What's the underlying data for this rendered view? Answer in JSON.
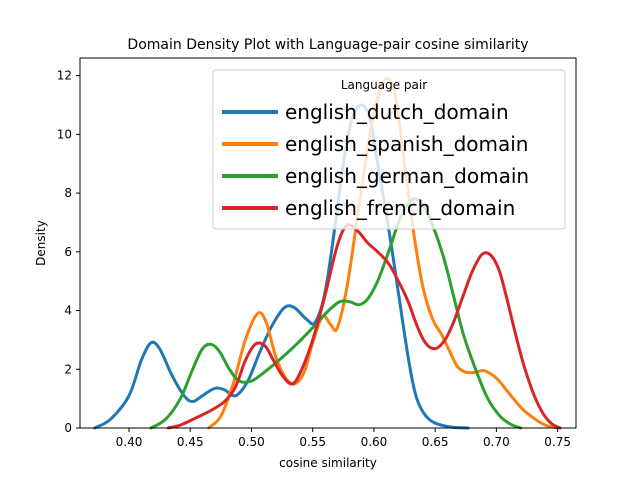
{
  "chart_data": {
    "type": "line",
    "title": "Domain Density Plot with Language-pair cosine similarity",
    "xlabel": "cosine similarity",
    "ylabel": "Density",
    "xlim": [
      0.36,
      0.765
    ],
    "ylim": [
      0,
      12.6
    ],
    "xticks": [
      0.4,
      0.45,
      0.5,
      0.55,
      0.6,
      0.65,
      0.7,
      0.75
    ],
    "xtick_labels": [
      "0.40",
      "0.45",
      "0.50",
      "0.55",
      "0.60",
      "0.65",
      "0.70",
      "0.75"
    ],
    "yticks": [
      0,
      2,
      4,
      6,
      8,
      10,
      12
    ],
    "ytick_labels": [
      "0",
      "2",
      "4",
      "6",
      "8",
      "10",
      "12"
    ],
    "grid": false,
    "legend": {
      "title": "Language pair",
      "placement": "top-right"
    },
    "series": [
      {
        "name": "english_dutch_domain",
        "color": "#1f77b4",
        "points": [
          [
            0.372,
            0
          ],
          [
            0.385,
            0.3
          ],
          [
            0.4,
            1.1
          ],
          [
            0.41,
            2.3
          ],
          [
            0.418,
            2.9
          ],
          [
            0.425,
            2.7
          ],
          [
            0.435,
            1.8
          ],
          [
            0.445,
            1.1
          ],
          [
            0.452,
            0.9
          ],
          [
            0.46,
            1.1
          ],
          [
            0.47,
            1.35
          ],
          [
            0.478,
            1.3
          ],
          [
            0.487,
            1.1
          ],
          [
            0.497,
            1.6
          ],
          [
            0.507,
            2.6
          ],
          [
            0.517,
            3.5
          ],
          [
            0.527,
            4.1
          ],
          [
            0.535,
            4.1
          ],
          [
            0.545,
            3.7
          ],
          [
            0.552,
            3.6
          ],
          [
            0.56,
            4.6
          ],
          [
            0.568,
            6.8
          ],
          [
            0.575,
            9.0
          ],
          [
            0.582,
            10.5
          ],
          [
            0.59,
            11.0
          ],
          [
            0.597,
            10.5
          ],
          [
            0.603,
            9.0
          ],
          [
            0.612,
            6.8
          ],
          [
            0.62,
            4.6
          ],
          [
            0.628,
            2.4
          ],
          [
            0.635,
            1.0
          ],
          [
            0.645,
            0.3
          ],
          [
            0.66,
            0.05
          ],
          [
            0.677,
            0
          ]
        ]
      },
      {
        "name": "english_spanish_domain",
        "color": "#ff7f0e",
        "points": [
          [
            0.465,
            0
          ],
          [
            0.475,
            0.4
          ],
          [
            0.485,
            1.5
          ],
          [
            0.495,
            3.0
          ],
          [
            0.505,
            3.9
          ],
          [
            0.512,
            3.6
          ],
          [
            0.52,
            2.4
          ],
          [
            0.528,
            1.7
          ],
          [
            0.535,
            1.5
          ],
          [
            0.543,
            1.9
          ],
          [
            0.55,
            2.9
          ],
          [
            0.558,
            3.8
          ],
          [
            0.565,
            3.5
          ],
          [
            0.57,
            3.4
          ],
          [
            0.578,
            4.8
          ],
          [
            0.588,
            7.6
          ],
          [
            0.598,
            10.3
          ],
          [
            0.606,
            11.6
          ],
          [
            0.612,
            11.9
          ],
          [
            0.618,
            11.2
          ],
          [
            0.625,
            9.0
          ],
          [
            0.633,
            6.5
          ],
          [
            0.64,
            4.8
          ],
          [
            0.648,
            3.7
          ],
          [
            0.655,
            3.2
          ],
          [
            0.662,
            2.6
          ],
          [
            0.668,
            2.1
          ],
          [
            0.675,
            1.9
          ],
          [
            0.683,
            1.9
          ],
          [
            0.69,
            1.95
          ],
          [
            0.7,
            1.7
          ],
          [
            0.71,
            1.2
          ],
          [
            0.72,
            0.7
          ],
          [
            0.73,
            0.35
          ],
          [
            0.74,
            0.1
          ],
          [
            0.75,
            0
          ]
        ]
      },
      {
        "name": "english_german_domain",
        "color": "#2ca02c",
        "points": [
          [
            0.418,
            0
          ],
          [
            0.43,
            0.3
          ],
          [
            0.442,
            1.0
          ],
          [
            0.452,
            2.0
          ],
          [
            0.46,
            2.7
          ],
          [
            0.467,
            2.85
          ],
          [
            0.474,
            2.6
          ],
          [
            0.482,
            2.0
          ],
          [
            0.49,
            1.6
          ],
          [
            0.5,
            1.6
          ],
          [
            0.512,
            1.95
          ],
          [
            0.525,
            2.4
          ],
          [
            0.538,
            2.9
          ],
          [
            0.552,
            3.5
          ],
          [
            0.563,
            4.0
          ],
          [
            0.572,
            4.3
          ],
          [
            0.58,
            4.3
          ],
          [
            0.588,
            4.2
          ],
          [
            0.595,
            4.4
          ],
          [
            0.603,
            5.0
          ],
          [
            0.612,
            6.0
          ],
          [
            0.622,
            7.2
          ],
          [
            0.632,
            7.8
          ],
          [
            0.64,
            7.6
          ],
          [
            0.648,
            6.9
          ],
          [
            0.657,
            5.8
          ],
          [
            0.665,
            4.5
          ],
          [
            0.673,
            3.2
          ],
          [
            0.683,
            2.0
          ],
          [
            0.693,
            1.0
          ],
          [
            0.703,
            0.4
          ],
          [
            0.712,
            0.12
          ],
          [
            0.72,
            0
          ]
        ]
      },
      {
        "name": "english_french_domain",
        "color": "#d62728",
        "points": [
          [
            0.432,
            0
          ],
          [
            0.442,
            0.1
          ],
          [
            0.455,
            0.35
          ],
          [
            0.467,
            0.6
          ],
          [
            0.478,
            0.9
          ],
          [
            0.487,
            1.4
          ],
          [
            0.495,
            2.3
          ],
          [
            0.503,
            2.85
          ],
          [
            0.511,
            2.8
          ],
          [
            0.518,
            2.3
          ],
          [
            0.525,
            1.8
          ],
          [
            0.533,
            1.5
          ],
          [
            0.54,
            1.9
          ],
          [
            0.55,
            3.0
          ],
          [
            0.56,
            4.5
          ],
          [
            0.57,
            6.2
          ],
          [
            0.578,
            6.9
          ],
          [
            0.587,
            6.7
          ],
          [
            0.595,
            6.3
          ],
          [
            0.603,
            6.0
          ],
          [
            0.612,
            5.6
          ],
          [
            0.62,
            5.0
          ],
          [
            0.628,
            4.3
          ],
          [
            0.635,
            3.5
          ],
          [
            0.642,
            2.9
          ],
          [
            0.65,
            2.7
          ],
          [
            0.658,
            3.0
          ],
          [
            0.665,
            3.6
          ],
          [
            0.672,
            4.4
          ],
          [
            0.68,
            5.3
          ],
          [
            0.688,
            5.9
          ],
          [
            0.695,
            5.9
          ],
          [
            0.702,
            5.4
          ],
          [
            0.708,
            4.5
          ],
          [
            0.715,
            3.3
          ],
          [
            0.722,
            2.2
          ],
          [
            0.73,
            1.2
          ],
          [
            0.738,
            0.5
          ],
          [
            0.745,
            0.15
          ],
          [
            0.752,
            0
          ]
        ]
      }
    ]
  }
}
